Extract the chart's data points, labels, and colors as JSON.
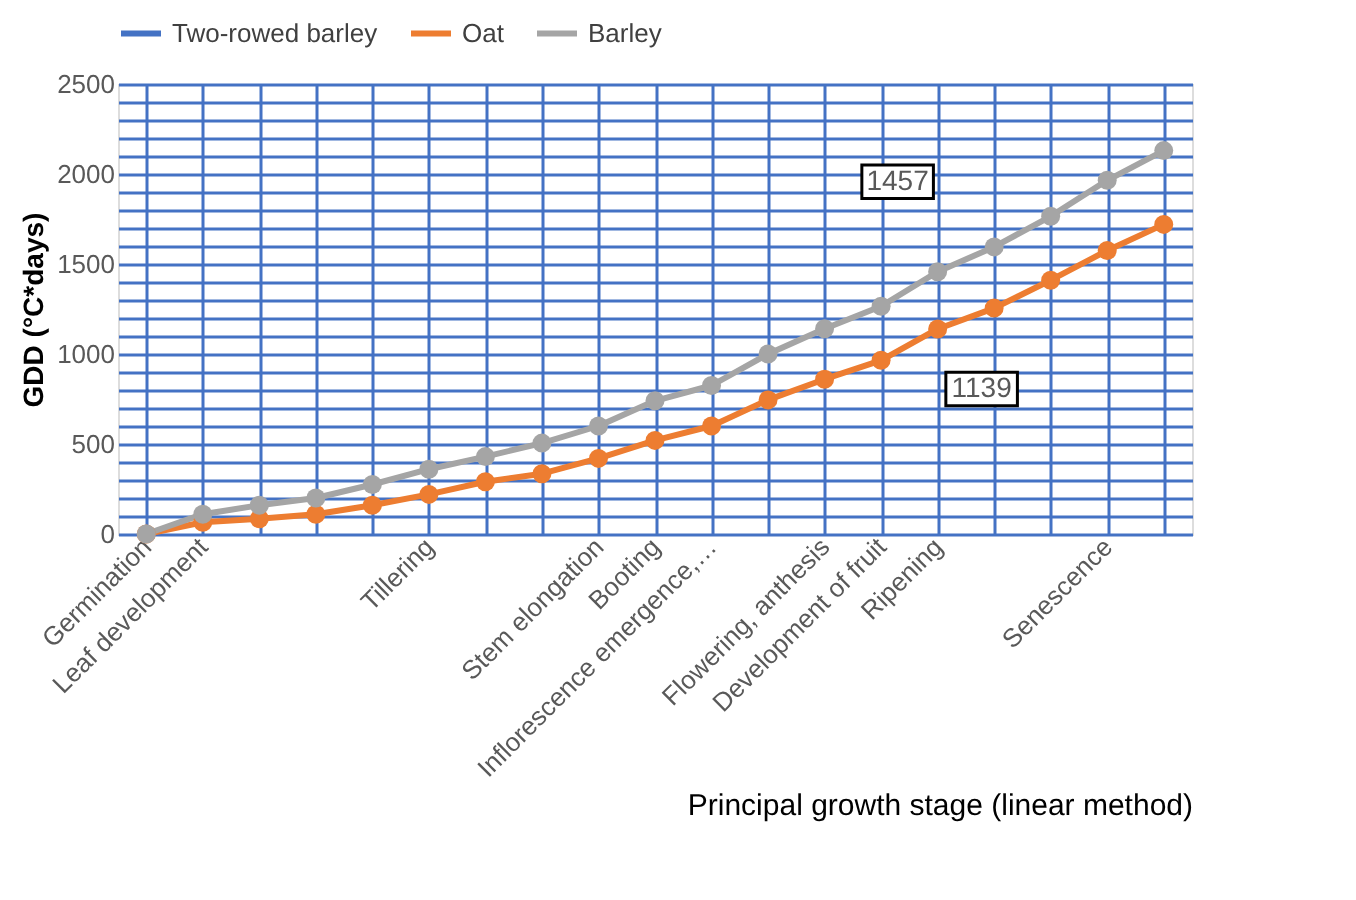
{
  "chart_data": {
    "type": "line",
    "xlabel": "Principal growth stage (linear method)",
    "ylabel": "GDD (°C*days)",
    "categories": [
      "Germination",
      "Leaf development",
      null,
      null,
      null,
      "Tillering",
      null,
      null,
      "Stem elongation",
      "Booting",
      "Inflorescence emergence,…",
      null,
      "Flowering, anthesis",
      "Development of fruit",
      "Ripening",
      null,
      null,
      "Senescence",
      null
    ],
    "series": [
      {
        "name": "Two-rowed barley",
        "color": "#4472c4",
        "values": [
          null,
          null,
          null,
          null,
          null,
          null,
          null,
          null,
          null,
          null,
          null,
          null,
          null,
          null,
          null,
          null,
          null,
          null,
          null
        ]
      },
      {
        "name": "Oat",
        "color": "#ed7d31",
        "values": [
          0,
          65,
          85,
          110,
          160,
          220,
          290,
          335,
          420,
          520,
          600,
          745,
          860,
          965,
          1139,
          1255,
          1410,
          1575,
          1720
        ],
        "value_labels": [
          null,
          null,
          null,
          null,
          null,
          null,
          null,
          null,
          null,
          null,
          null,
          null,
          null,
          null,
          "1139",
          null,
          null,
          null,
          null
        ]
      },
      {
        "name": "Barley",
        "color": "#a5a5a5",
        "values": [
          0,
          110,
          160,
          200,
          275,
          360,
          430,
          505,
          600,
          740,
          825,
          1000,
          1140,
          1265,
          1457,
          1595,
          1765,
          1965,
          2130
        ],
        "value_labels": [
          null,
          null,
          null,
          null,
          null,
          null,
          null,
          null,
          null,
          null,
          null,
          null,
          null,
          null,
          "1457",
          null,
          null,
          null,
          null
        ]
      }
    ],
    "ylim": [
      0,
      2500
    ],
    "yticks": [
      0,
      {
        "value": 100,
        "label": null
      },
      {
        "value": 200,
        "label": null
      },
      {
        "value": 300,
        "label": null
      },
      {
        "value": 400,
        "label": null
      },
      500,
      {
        "value": 600,
        "label": null
      },
      {
        "value": 700,
        "label": null
      },
      {
        "value": 800,
        "label": null
      },
      {
        "value": 900,
        "label": null
      },
      1000,
      {
        "value": 1100,
        "label": null
      },
      {
        "value": 1200,
        "label": null
      },
      {
        "value": 1300,
        "label": null
      },
      {
        "value": 1400,
        "label": null
      },
      1500,
      {
        "value": 1600,
        "label": null
      },
      {
        "value": 1700,
        "label": null
      },
      {
        "value": 1800,
        "label": null
      },
      {
        "value": 1900,
        "label": null
      },
      2000,
      {
        "value": 2100,
        "label": null
      },
      {
        "value": 2200,
        "label": null
      },
      {
        "value": 2300,
        "label": null
      },
      {
        "value": 2400,
        "label": null
      },
      2500
    ],
    "grid": true,
    "legend": "top",
    "marker": "circle",
    "line_style": "solid"
  }
}
